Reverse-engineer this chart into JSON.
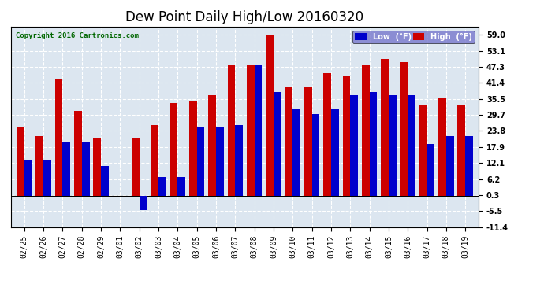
{
  "title": "Dew Point Daily High/Low 20160320",
  "copyright": "Copyright 2016 Cartronics.com",
  "dates": [
    "02/25",
    "02/26",
    "02/27",
    "02/28",
    "02/29",
    "03/01",
    "03/02",
    "03/03",
    "03/04",
    "03/05",
    "03/06",
    "03/07",
    "03/08",
    "03/09",
    "03/10",
    "03/11",
    "03/12",
    "03/13",
    "03/14",
    "03/15",
    "03/16",
    "03/17",
    "03/18",
    "03/19"
  ],
  "high": [
    25,
    22,
    43,
    31,
    21,
    null,
    21,
    26,
    34,
    35,
    37,
    48,
    48,
    59,
    40,
    40,
    45,
    44,
    48,
    50,
    49,
    33,
    36,
    33
  ],
  "low": [
    13,
    13,
    20,
    20,
    11,
    null,
    -5,
    7,
    7,
    25,
    25,
    26,
    48,
    38,
    32,
    30,
    32,
    37,
    38,
    37,
    37,
    19,
    22,
    22
  ],
  "ylim": [
    -11.4,
    62.0
  ],
  "yticks": [
    -11.4,
    -5.5,
    0.3,
    6.2,
    12.1,
    17.9,
    23.8,
    29.7,
    35.5,
    41.4,
    47.3,
    53.1,
    59.0
  ],
  "bar_width": 0.4,
  "low_color": "#0000cc",
  "high_color": "#cc0000",
  "bg_color": "#dce6f0",
  "plot_bg": "#dce6f0",
  "grid_color": "#888888",
  "title_fontsize": 12,
  "tick_fontsize": 7,
  "legend_low_bg": "#0000cc",
  "legend_high_bg": "#cc0000"
}
